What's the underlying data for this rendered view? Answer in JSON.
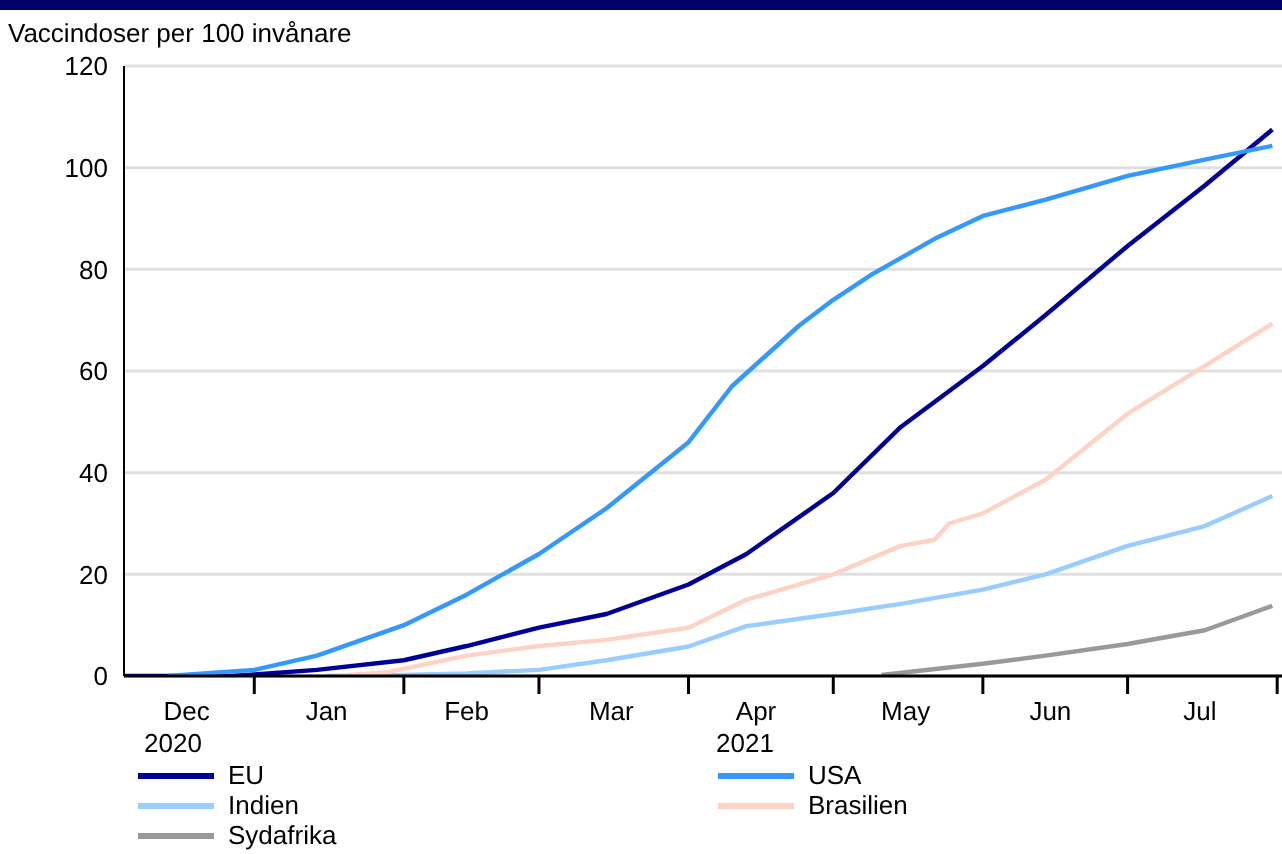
{
  "chart_data": {
    "type": "line",
    "ylabel": "Vaccindoser per 100 invånare",
    "xlim": [
      "2020-12-05",
      "2021-08-02"
    ],
    "xticks": [
      {
        "value": "2020-12-18",
        "label": "Dec"
      },
      {
        "value": "2021-01-01",
        "label": null
      },
      {
        "value": "2021-01-16",
        "label": "Jan"
      },
      {
        "value": "2021-02-01",
        "label": null
      },
      {
        "value": "2021-02-14",
        "label": "Feb"
      },
      {
        "value": "2021-03-01",
        "label": null
      },
      {
        "value": "2021-03-16",
        "label": "Mar"
      },
      {
        "value": "2021-04-01",
        "label": null
      },
      {
        "value": "2021-04-15",
        "label": "Apr"
      },
      {
        "value": "2021-05-01",
        "label": null
      },
      {
        "value": "2021-05-16",
        "label": "May"
      },
      {
        "value": "2021-06-01",
        "label": null
      },
      {
        "value": "2021-06-15",
        "label": "Jun"
      },
      {
        "value": "2021-07-01",
        "label": null
      },
      {
        "value": "2021-07-16",
        "label": "Jul"
      },
      {
        "value": "2021-08-01",
        "label": null
      }
    ],
    "ylim": [
      0,
      120
    ],
    "yticks": [
      0,
      20,
      40,
      60,
      80,
      100,
      120
    ],
    "grid": "y",
    "legend": "bottom",
    "marker": "none",
    "line_style": "solid",
    "annotations": [
      "2020",
      "2021"
    ],
    "series": [
      {
        "name": "EU",
        "color": "#000099",
        "x": [
          "2020-12-05",
          "2020-12-27",
          "2021-01-01",
          "2021-01-14",
          "2021-02-01",
          "2021-02-14",
          "2021-03-01",
          "2021-03-15",
          "2021-04-01",
          "2021-04-13",
          "2021-05-01",
          "2021-05-15",
          "2021-06-01",
          "2021-06-14",
          "2021-07-01",
          "2021-07-17",
          "2021-07-31"
        ],
        "values": [
          0,
          0,
          0.3,
          1.2,
          3.1,
          5.9,
          9.5,
          12.2,
          18,
          24,
          36,
          49,
          61,
          71,
          84.6,
          96.5,
          107.5
        ]
      },
      {
        "name": "USA",
        "color": "#3399ff",
        "x": [
          "2020-12-14",
          "2021-01-01",
          "2021-01-14",
          "2021-02-01",
          "2021-02-14",
          "2021-03-01",
          "2021-03-15",
          "2021-04-01",
          "2021-04-10",
          "2021-04-17",
          "2021-04-24",
          "2021-05-01",
          "2021-05-09",
          "2021-05-22",
          "2021-06-01",
          "2021-06-14",
          "2021-07-01",
          "2021-07-17",
          "2021-07-31"
        ],
        "values": [
          0,
          1.2,
          4,
          10,
          16,
          24,
          33,
          46,
          57,
          63,
          69,
          74,
          79,
          86,
          90.5,
          93.7,
          98.4,
          101.6,
          104.3
        ]
      },
      {
        "name": "Indien",
        "color": "#99ccff",
        "x": [
          "2021-01-16",
          "2021-02-01",
          "2021-02-14",
          "2021-03-01",
          "2021-03-15",
          "2021-04-01",
          "2021-04-13",
          "2021-05-01",
          "2021-05-15",
          "2021-06-01",
          "2021-06-14",
          "2021-07-01",
          "2021-07-17",
          "2021-07-31"
        ],
        "values": [
          0,
          0.2,
          0.5,
          1.2,
          3.1,
          5.8,
          9.8,
          12.2,
          14.2,
          17,
          20,
          25.6,
          29.5,
          35.4
        ]
      },
      {
        "name": "Brasilien",
        "color": "#fcd3c4",
        "x": [
          "2021-01-18",
          "2021-01-29",
          "2021-02-14",
          "2021-03-01",
          "2021-03-15",
          "2021-04-01",
          "2021-04-13",
          "2021-05-01",
          "2021-05-15",
          "2021-05-22",
          "2021-05-25",
          "2021-06-01",
          "2021-06-14",
          "2021-07-01",
          "2021-07-17",
          "2021-07-31"
        ],
        "values": [
          0,
          0.8,
          4,
          5.9,
          7.1,
          9.5,
          15,
          20,
          25.6,
          26.8,
          30,
          32,
          38.6,
          51.6,
          61,
          69.3
        ]
      },
      {
        "name": "Sydafrika",
        "color": "#999999",
        "x": [
          "2021-05-11",
          "2021-06-01",
          "2021-06-14",
          "2021-07-01",
          "2021-07-17",
          "2021-07-31"
        ],
        "values": [
          0.2,
          2.4,
          4,
          6.3,
          9,
          13.8
        ]
      }
    ]
  }
}
